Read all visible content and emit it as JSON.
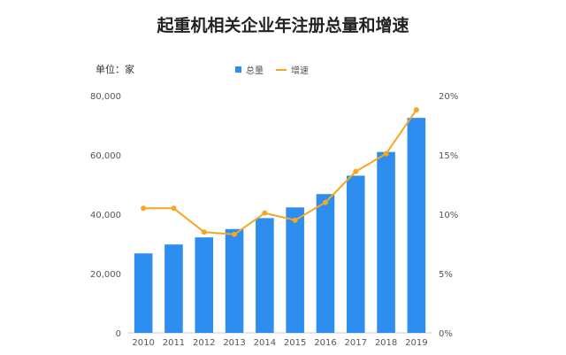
{
  "chart_data": {
    "type": "bar",
    "title": "起重机相关企业年注册总量和增速",
    "unit_label": "单位：家",
    "categories": [
      "2010",
      "2011",
      "2012",
      "2013",
      "2014",
      "2015",
      "2016",
      "2017",
      "2018",
      "2019"
    ],
    "series": [
      {
        "name": "总量",
        "type": "bar",
        "axis": "left",
        "values": [
          26800,
          29800,
          32200,
          35000,
          38700,
          42300,
          46800,
          53000,
          61000,
          72500
        ]
      },
      {
        "name": "增速",
        "type": "line",
        "axis": "right",
        "values": [
          10.5,
          10.5,
          8.5,
          8.3,
          10.1,
          9.5,
          11.0,
          13.6,
          15.1,
          18.8
        ]
      }
    ],
    "y_left": {
      "min": 0,
      "max": 80000,
      "ticks": [
        "0",
        "20,000",
        "40,000",
        "60,000",
        "80,000"
      ]
    },
    "y_right": {
      "min": 0,
      "max": 20,
      "ticks": [
        "0%",
        "5%",
        "10%",
        "15%",
        "20%"
      ]
    },
    "legend_position": "top-center",
    "colors": {
      "bar": "#2e8ef0",
      "line": "#f5a623",
      "axis": "#cccccc"
    }
  }
}
